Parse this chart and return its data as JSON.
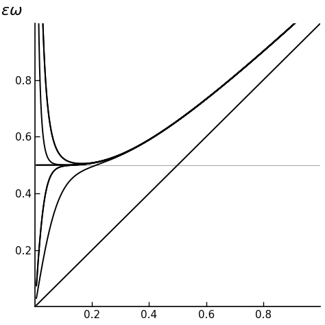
{
  "xlabel": "",
  "ylabel": "\\varepsilon\\omega",
  "xlim": [
    0,
    1.0
  ],
  "ylim": [
    0,
    1.0
  ],
  "xticks": [
    0.2,
    0.4,
    0.6,
    0.8
  ],
  "yticks": [
    0.2,
    0.4,
    0.6,
    0.8
  ],
  "hline_y": 0.5,
  "hline_color": "#aaaaaa",
  "curve_color": "#000000",
  "background_color": "#ffffff",
  "lw": 1.4
}
